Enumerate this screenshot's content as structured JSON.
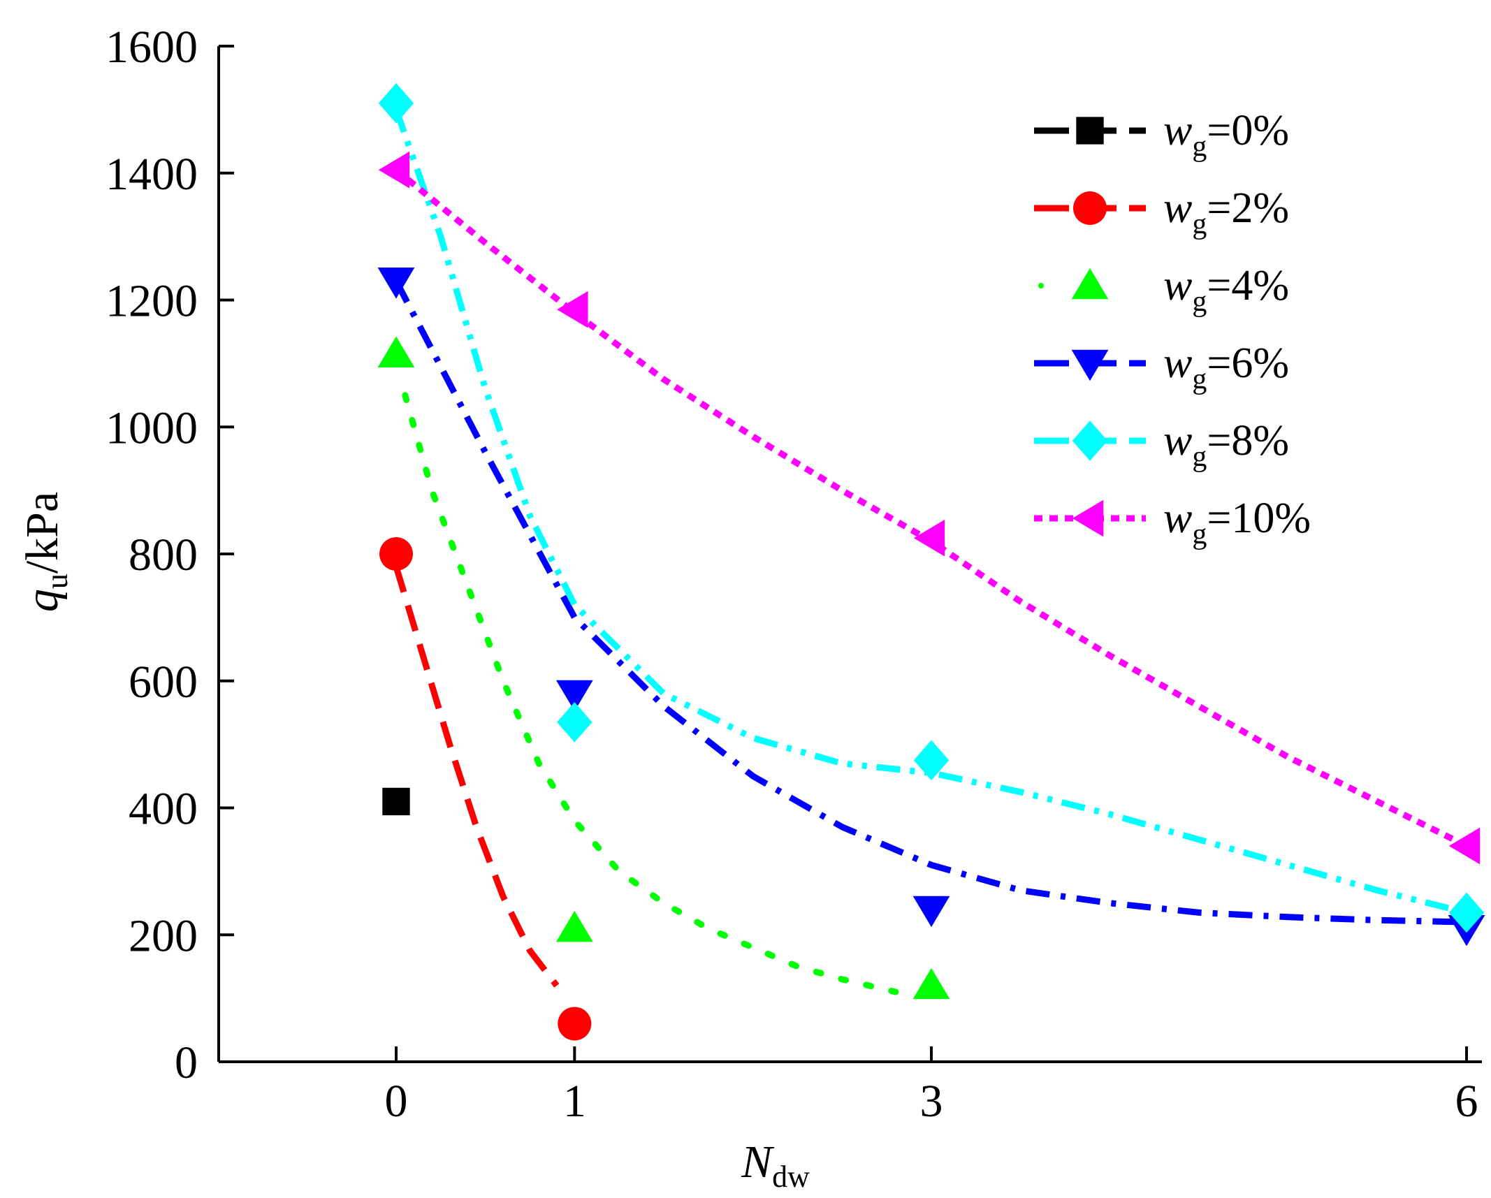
{
  "chart_data": {
    "type": "scatter",
    "xlabel": {
      "main": "N",
      "sub": "dw"
    },
    "ylabel": {
      "main": "q",
      "sub": "u",
      "suffix": "/kPa"
    },
    "xlim": [
      -1,
      6.05
    ],
    "ylim": [
      0,
      1600
    ],
    "x_ticks": [
      0,
      1,
      3,
      6
    ],
    "x_tick_labels": [
      "0",
      "1",
      "3",
      "6"
    ],
    "y_ticks": [
      0,
      200,
      400,
      600,
      800,
      1000,
      1200,
      1400,
      1600
    ],
    "y_tick_labels": [
      "0",
      "200",
      "400",
      "600",
      "800",
      "1000",
      "1200",
      "1400",
      "1600"
    ],
    "legend_position": "top-right",
    "series": [
      {
        "name": "wg=0%",
        "label_main": "w",
        "label_sub": "g",
        "label_value": "=0%",
        "color": "#000000",
        "marker": "square",
        "line_style": "dash",
        "x": [
          0
        ],
        "y": [
          410
        ],
        "fit": null
      },
      {
        "name": "wg=2%",
        "label_main": "w",
        "label_sub": "g",
        "label_value": "=2%",
        "color": "#ff0000",
        "marker": "circle",
        "line_style": "dash",
        "x": [
          0,
          1
        ],
        "y": [
          800,
          60
        ],
        "fit": {
          "x": [
            0,
            0.15,
            0.3,
            0.45,
            0.6,
            0.75,
            0.9
          ],
          "y": [
            780,
            640,
            500,
            370,
            260,
            175,
            120
          ]
        }
      },
      {
        "name": "wg=4%",
        "label_main": "w",
        "label_sub": "g",
        "label_value": "=4%",
        "color": "#00ff00",
        "marker": "triangle-up",
        "line_style": "dot",
        "x": [
          0,
          1,
          3
        ],
        "y": [
          1115,
          210,
          120
        ],
        "fit": {
          "x": [
            0.05,
            0.2,
            0.4,
            0.6,
            0.8,
            1,
            1.25,
            1.5,
            1.75,
            2,
            2.25,
            2.5,
            2.8
          ],
          "y": [
            1050,
            900,
            750,
            600,
            470,
            380,
            300,
            250,
            210,
            180,
            150,
            130,
            110
          ]
        }
      },
      {
        "name": "wg=6%",
        "label_main": "w",
        "label_sub": "g",
        "label_value": "=6%",
        "color": "#0000ff",
        "marker": "triangle-down",
        "line_style": "dashdot",
        "x": [
          0,
          1,
          3,
          6
        ],
        "y": [
          1230,
          580,
          240,
          210
        ],
        "fit": {
          "x": [
            0,
            0.5,
            1,
            1.5,
            2,
            2.5,
            3,
            3.5,
            4,
            4.5,
            5,
            5.5,
            6
          ],
          "y": [
            1230,
            960,
            700,
            560,
            450,
            370,
            310,
            270,
            250,
            235,
            228,
            223,
            220
          ]
        }
      },
      {
        "name": "wg=8%",
        "label_main": "w",
        "label_sub": "g",
        "label_value": "=8%",
        "color": "#00ffff",
        "marker": "diamond",
        "line_style": "dashdotdot",
        "x": [
          0,
          1,
          3,
          6
        ],
        "y": [
          1510,
          535,
          475,
          235
        ],
        "fit": {
          "x": [
            0,
            0.25,
            0.5,
            0.75,
            1,
            1.5,
            2,
            2.5,
            3,
            3.5,
            4,
            4.5,
            5,
            5.5,
            6
          ],
          "y": [
            1500,
            1300,
            1060,
            860,
            720,
            580,
            510,
            470,
            455,
            425,
            390,
            350,
            310,
            270,
            235
          ]
        }
      },
      {
        "name": "wg=10%",
        "label_main": "w",
        "label_sub": "g",
        "label_value": "=10%",
        "color": "#ff00ff",
        "marker": "triangle-left",
        "line_style": "shortdot",
        "x": [
          0,
          1,
          3,
          6
        ],
        "y": [
          1405,
          1185,
          825,
          340
        ],
        "fit": {
          "x": [
            0,
            0.5,
            1,
            1.5,
            2,
            2.5,
            3,
            3.5,
            4,
            4.5,
            5,
            5.5,
            6
          ],
          "y": [
            1405,
            1290,
            1180,
            1075,
            985,
            900,
            820,
            725,
            640,
            560,
            480,
            410,
            340
          ]
        }
      }
    ]
  }
}
